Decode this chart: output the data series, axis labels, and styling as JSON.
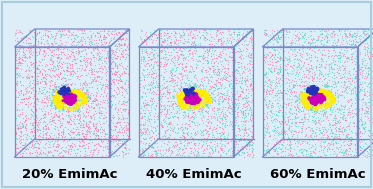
{
  "background_color": "#ddeef8",
  "border_color": "#aabbdd",
  "label_fontsize": 9.5,
  "label_fontweight": "bold",
  "box_edge_color": "#7788cc",
  "dot_colors": {
    "pink": "#ff77aa",
    "cyan": "#55ddcc",
    "yellow": "#ffee00",
    "magenta": "#cc00bb",
    "blue": "#2233bb",
    "green": "#33cc77"
  },
  "panels": [
    {
      "label": "20% EmimAc",
      "n_pink": 2200,
      "n_cyan": 300,
      "cyan_spread": 0.4
    },
    {
      "label": "40% EmimAc",
      "n_pink": 1600,
      "n_cyan": 900,
      "cyan_spread": 0.7
    },
    {
      "label": "60% EmimAc",
      "n_pink": 1100,
      "n_cyan": 1400,
      "cyan_spread": 1.0
    }
  ]
}
